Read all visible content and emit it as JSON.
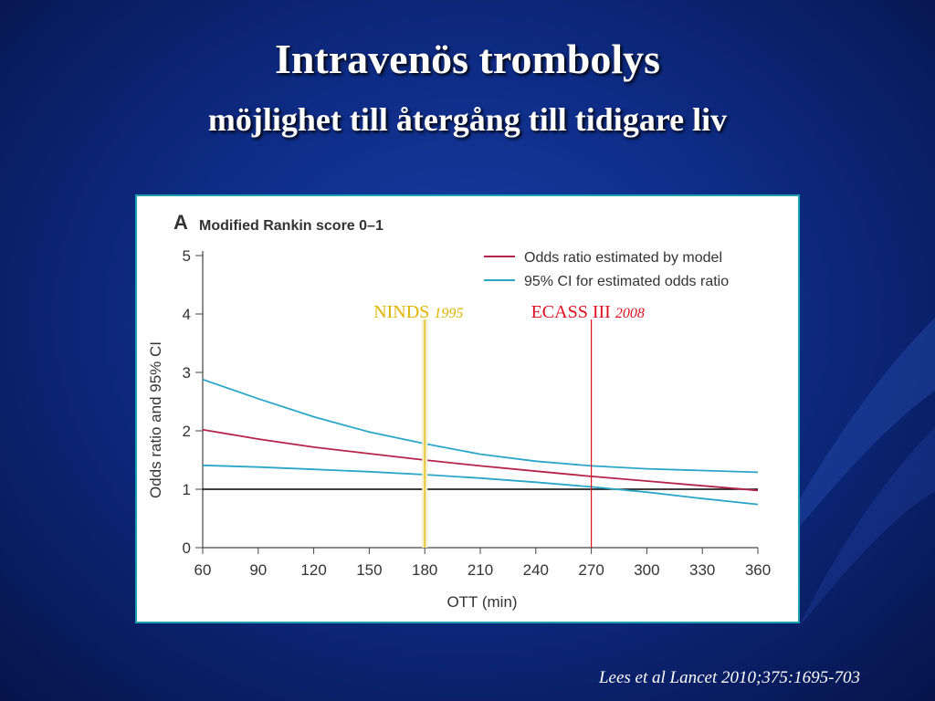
{
  "slide": {
    "title": "Intravenös trombolys",
    "subtitle": "möjlighet till återgång till tidigare liv",
    "citation": "Lees et al Lancet 2010;375:1695-703"
  },
  "colors": {
    "model": "#b5234a",
    "ci": "#2aa6c9",
    "reference": "#000000",
    "ninds": "#e0b400",
    "ecass": "#e01020"
  },
  "chart_data": {
    "type": "line",
    "panel_letter": "A",
    "title": "Modified Rankin score 0–1",
    "xlabel": "OTT (min)",
    "ylabel": "Odds ratio and 95% CI",
    "xlim": [
      60,
      360
    ],
    "ylim": [
      0,
      5
    ],
    "x_ticks": [
      60,
      90,
      120,
      150,
      180,
      210,
      240,
      270,
      300,
      330,
      360
    ],
    "y_ticks": [
      0,
      1,
      2,
      3,
      4,
      5
    ],
    "legend_position": "top-right",
    "reference_line": 1,
    "x": [
      60,
      90,
      120,
      150,
      180,
      210,
      240,
      270,
      300,
      330,
      360
    ],
    "series": [
      {
        "name": "Odds ratio estimated by model",
        "color": "#b5234a",
        "values": [
          2.02,
          1.86,
          1.72,
          1.61,
          1.5,
          1.4,
          1.31,
          1.22,
          1.14,
          1.06,
          0.98
        ]
      },
      {
        "name": "95% CI for estimated odds ratio",
        "color": "#2aa6c9",
        "values": [
          2.88,
          2.55,
          2.24,
          1.98,
          1.78,
          1.6,
          1.48,
          1.4,
          1.35,
          1.32,
          1.29
        ]
      },
      {
        "name": "",
        "color": "#2aa6c9",
        "values": [
          1.41,
          1.38,
          1.34,
          1.3,
          1.25,
          1.19,
          1.12,
          1.04,
          0.95,
          0.84,
          0.74
        ]
      }
    ],
    "annotations": [
      {
        "label": "NINDS",
        "year": "1995",
        "x": 180,
        "color": "#e0b400"
      },
      {
        "label": "ECASS III",
        "year": "2008",
        "x": 270,
        "color": "#e01020"
      }
    ]
  }
}
